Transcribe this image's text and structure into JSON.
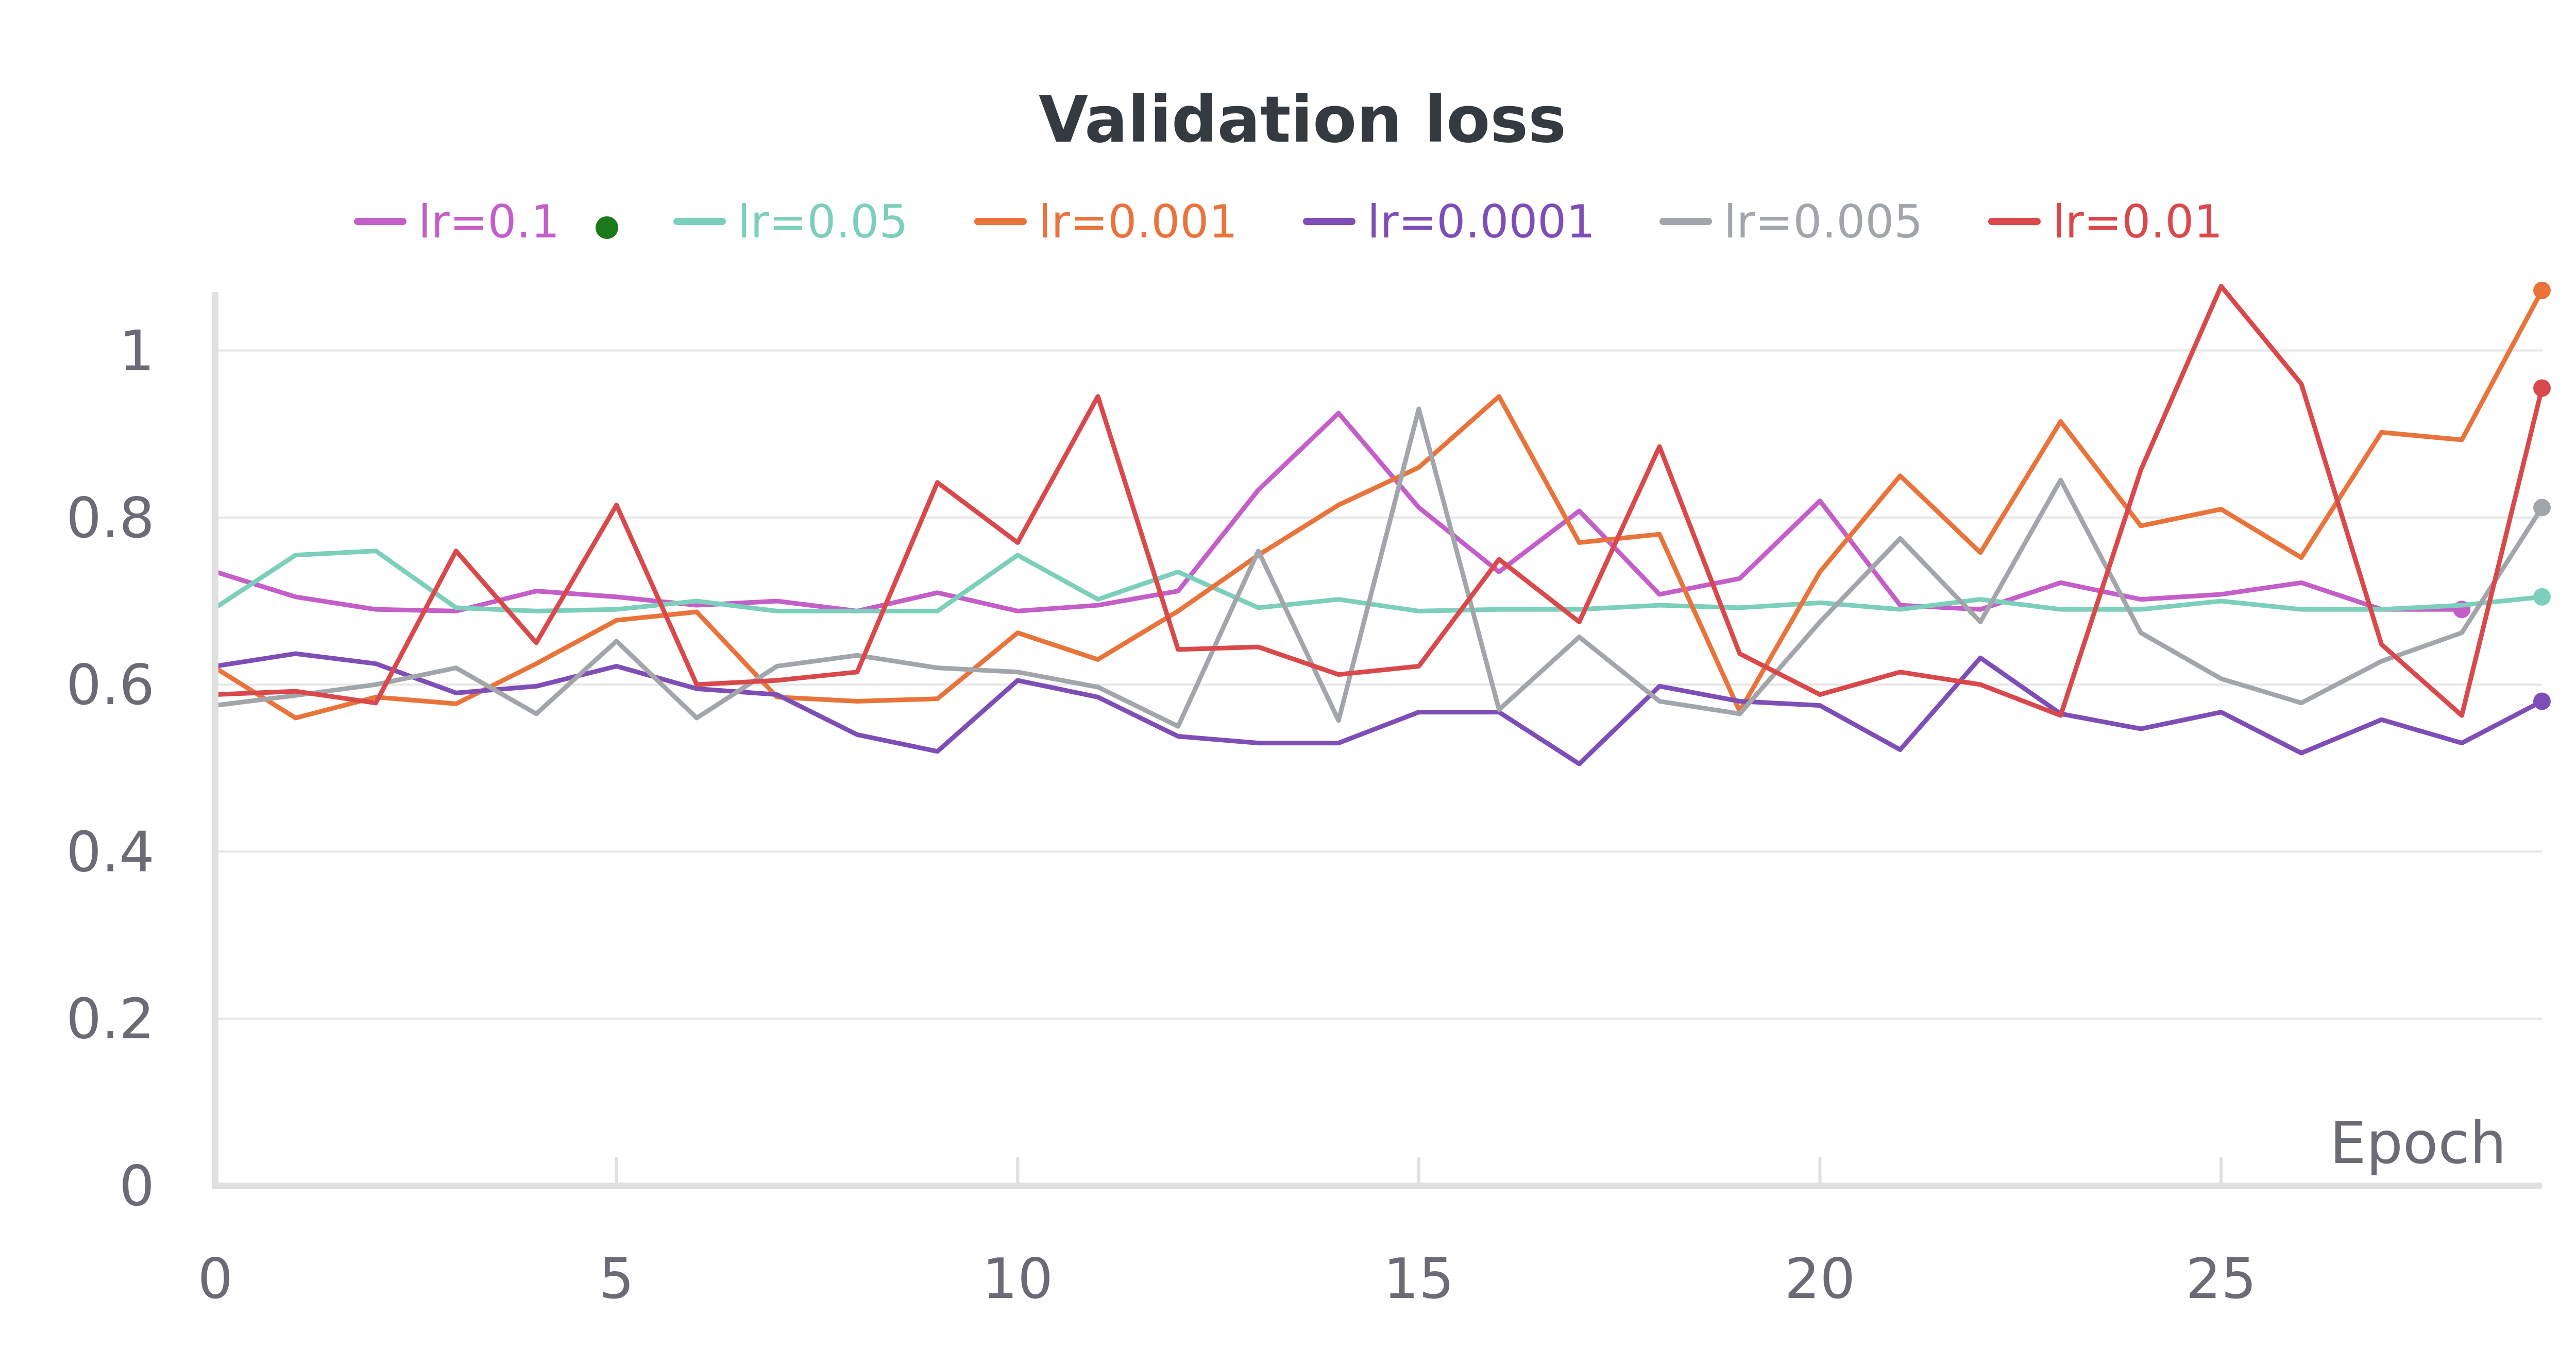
{
  "chart_data": {
    "type": "line",
    "title": "Validation loss",
    "xlabel": "Epoch",
    "ylabel": "",
    "xlim": [
      0,
      29
    ],
    "ylim": [
      0,
      1.07
    ],
    "xticks": [
      0,
      5,
      10,
      15,
      20,
      25
    ],
    "xtick_labels": [
      "0",
      "5",
      "10",
      "15",
      "20",
      "25"
    ],
    "yticks": [
      0,
      0.2,
      0.4,
      0.6,
      0.8,
      1
    ],
    "ytick_labels": [
      "0",
      "0.2",
      "0.4",
      "0.6",
      "0.8",
      "1"
    ],
    "grid": true,
    "legend_position": "top-center",
    "legend_marker": "●",
    "legend_marker_color": "#1a7a1a",
    "series": [
      {
        "name": "lr=0.1",
        "color": "#c45ec8",
        "x": [
          0,
          1,
          2,
          3,
          4,
          5,
          6,
          7,
          8,
          9,
          10,
          11,
          12,
          13,
          14,
          15,
          16,
          17,
          18,
          19,
          20,
          21,
          22,
          23,
          24,
          25,
          26,
          27,
          28
        ],
        "values": [
          0.735,
          0.705,
          0.69,
          0.688,
          0.712,
          0.705,
          0.695,
          0.7,
          0.688,
          0.71,
          0.688,
          0.695,
          0.712,
          0.833,
          0.925,
          0.812,
          0.735,
          0.808,
          0.708,
          0.727,
          0.82,
          0.695,
          0.69,
          0.722,
          0.702,
          0.708,
          0.722,
          0.69,
          0.69
        ],
        "endpoint": true
      },
      {
        "name": "lr=0.05",
        "color": "#7ccfbb",
        "x": [
          0,
          1,
          2,
          3,
          4,
          5,
          6,
          7,
          8,
          9,
          10,
          11,
          12,
          13,
          14,
          15,
          16,
          17,
          18,
          19,
          20,
          21,
          22,
          23,
          24,
          25,
          26,
          27,
          28,
          29
        ],
        "values": [
          0.692,
          0.755,
          0.76,
          0.692,
          0.688,
          0.69,
          0.7,
          0.688,
          0.688,
          0.688,
          0.755,
          0.702,
          0.735,
          0.692,
          0.702,
          0.688,
          0.69,
          0.69,
          0.695,
          0.692,
          0.698,
          0.69,
          0.702,
          0.69,
          0.69,
          0.7,
          0.69,
          0.69,
          0.695,
          0.705
        ],
        "endpoint": true
      },
      {
        "name": "lr=0.001",
        "color": "#e8743b",
        "x": [
          0,
          1,
          2,
          3,
          4,
          5,
          6,
          7,
          8,
          9,
          10,
          11,
          12,
          13,
          14,
          15,
          16,
          17,
          18,
          19,
          20,
          21,
          22,
          23,
          24,
          25,
          26,
          27,
          28,
          29
        ],
        "values": [
          0.62,
          0.56,
          0.585,
          0.577,
          0.625,
          0.677,
          0.687,
          0.585,
          0.58,
          0.583,
          0.662,
          0.63,
          0.688,
          0.755,
          0.815,
          0.86,
          0.945,
          0.77,
          0.78,
          0.568,
          0.735,
          0.85,
          0.758,
          0.915,
          0.79,
          0.81,
          0.752,
          0.902,
          0.893,
          1.072
        ],
        "endpoint": true
      },
      {
        "name": "lr=0.0001",
        "color": "#7e4eb6",
        "x": [
          0,
          1,
          2,
          3,
          4,
          5,
          6,
          7,
          8,
          9,
          10,
          11,
          12,
          13,
          14,
          15,
          16,
          17,
          18,
          19,
          20,
          21,
          22,
          23,
          24,
          25,
          26,
          27,
          28,
          29
        ],
        "values": [
          0.622,
          0.637,
          0.625,
          0.59,
          0.598,
          0.622,
          0.595,
          0.588,
          0.54,
          0.52,
          0.605,
          0.585,
          0.538,
          0.53,
          0.53,
          0.567,
          0.567,
          0.505,
          0.598,
          0.58,
          0.575,
          0.522,
          0.632,
          0.565,
          0.547,
          0.567,
          0.518,
          0.558,
          0.53,
          0.58
        ],
        "endpoint": true
      },
      {
        "name": "lr=0.005",
        "color": "#a2a6ab",
        "x": [
          0,
          1,
          2,
          3,
          4,
          5,
          6,
          7,
          8,
          9,
          10,
          11,
          12,
          13,
          14,
          15,
          16,
          17,
          18,
          19,
          20,
          21,
          22,
          23,
          24,
          25,
          26,
          27,
          28,
          29
        ],
        "values": [
          0.575,
          0.587,
          0.6,
          0.62,
          0.565,
          0.652,
          0.56,
          0.622,
          0.635,
          0.62,
          0.615,
          0.597,
          0.55,
          0.76,
          0.557,
          0.93,
          0.57,
          0.657,
          0.58,
          0.565,
          0.675,
          0.775,
          0.675,
          0.845,
          0.662,
          0.607,
          0.578,
          0.628,
          0.662,
          0.812
        ],
        "endpoint": true
      },
      {
        "name": "lr=0.01",
        "color": "#d9484b",
        "x": [
          0,
          1,
          2,
          3,
          4,
          5,
          6,
          7,
          8,
          9,
          10,
          11,
          12,
          13,
          14,
          15,
          16,
          17,
          18,
          19,
          20,
          21,
          22,
          23,
          24,
          25,
          26,
          27,
          28,
          29
        ],
        "values": [
          0.588,
          0.592,
          0.578,
          0.76,
          0.65,
          0.815,
          0.6,
          0.605,
          0.615,
          0.842,
          0.77,
          0.945,
          0.642,
          0.645,
          0.612,
          0.622,
          0.75,
          0.675,
          0.885,
          0.637,
          0.588,
          0.615,
          0.6,
          0.563,
          0.857,
          1.077,
          0.96,
          0.648,
          0.563,
          0.955
        ],
        "endpoint": true
      }
    ]
  }
}
